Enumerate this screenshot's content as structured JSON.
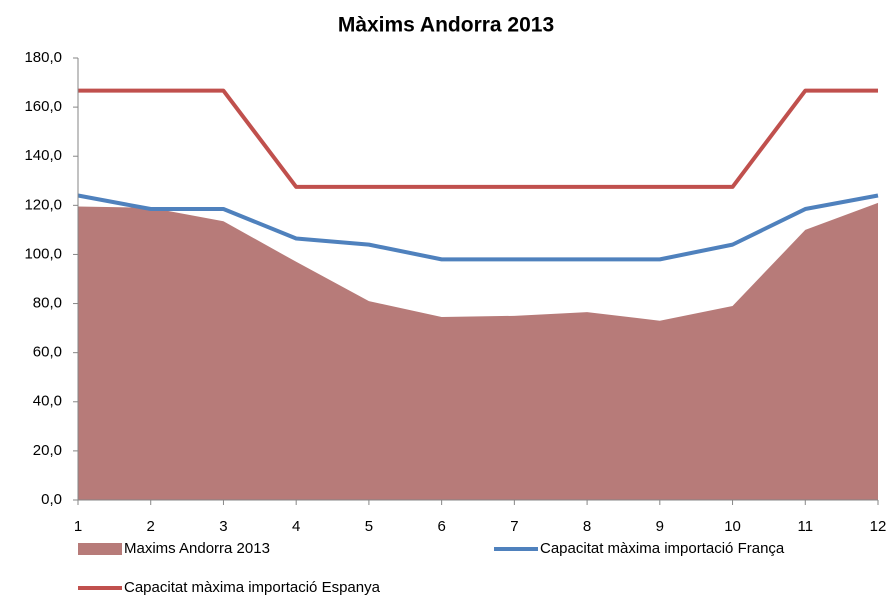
{
  "chart_data": {
    "type": "area",
    "title": "Màxims Andorra 2013",
    "categories": [
      "1",
      "2",
      "3",
      "4",
      "5",
      "6",
      "7",
      "8",
      "9",
      "10",
      "11",
      "12"
    ],
    "series": [
      {
        "name": "Maxims Andorra 2013",
        "type": "area",
        "color": "#b77b79",
        "values": [
          119.5,
          119,
          113.5,
          97,
          81,
          74.5,
          75,
          76.5,
          73,
          79,
          110,
          121
        ]
      },
      {
        "name": "Capacitat màxima importació França",
        "type": "line",
        "color": "#4f81bd",
        "values": [
          124,
          118.5,
          118.5,
          106.5,
          104,
          98,
          98,
          98,
          98,
          104,
          118.5,
          124
        ]
      },
      {
        "name": "Capacitat màxima importació Espanya",
        "type": "line",
        "color": "#c0504d",
        "values": [
          166.7,
          166.7,
          166.7,
          127.5,
          127.5,
          127.5,
          127.5,
          127.5,
          127.5,
          127.5,
          166.7,
          166.7
        ]
      }
    ],
    "ylim": [
      0,
      180
    ],
    "yticks": [
      {
        "value": 0,
        "label": "0,0"
      },
      {
        "value": 20,
        "label": "20,0"
      },
      {
        "value": 40,
        "label": "40,0"
      },
      {
        "value": 60,
        "label": "60,0"
      },
      {
        "value": 80,
        "label": "80,0"
      },
      {
        "value": 100,
        "label": "100,0"
      },
      {
        "value": 120,
        "label": "120,0"
      },
      {
        "value": 140,
        "label": "140,0"
      },
      {
        "value": 160,
        "label": "160,0"
      },
      {
        "value": 180,
        "label": "180,0"
      }
    ],
    "grid": false,
    "legend": "bottom"
  }
}
